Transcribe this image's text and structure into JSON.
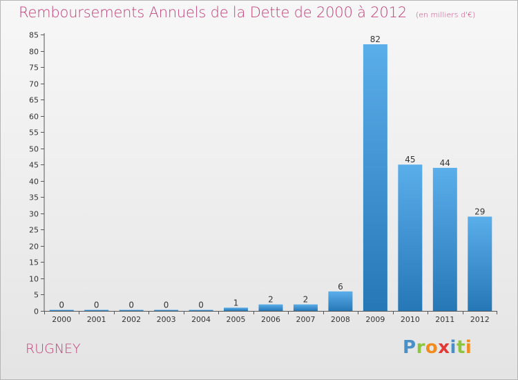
{
  "header": {
    "title": "Remboursements Annuels de la Dette de 2000 à 2012",
    "unit": "(en milliers d'€)"
  },
  "footer": {
    "location": "RUGNEY",
    "logo_letters": [
      "P",
      "r",
      "o",
      "x",
      "i",
      "t",
      "i"
    ],
    "logo_colors": [
      "#4a90c8",
      "#8cc63f",
      "#f28c1e",
      "#e53935",
      "#4a90c8",
      "#8cc63f",
      "#f28c1e"
    ]
  },
  "colors": {
    "bar_light": "#5aaeea",
    "bar_dark": "#2677b6",
    "title": "#c2407a"
  },
  "chart_data": {
    "type": "bar",
    "title": "Remboursements Annuels de la Dette de 2000 à 2012",
    "subtitle": "(en milliers d'€)",
    "xlabel": "",
    "ylabel": "",
    "categories": [
      "2000",
      "2001",
      "2002",
      "2003",
      "2004",
      "2005",
      "2006",
      "2007",
      "2008",
      "2009",
      "2010",
      "2011",
      "2012"
    ],
    "values": [
      0,
      0,
      0,
      0,
      0,
      1,
      2,
      2,
      6,
      82,
      45,
      44,
      29
    ],
    "ylim": [
      0,
      85
    ],
    "yticks": [
      0,
      5,
      10,
      15,
      20,
      25,
      30,
      35,
      40,
      45,
      50,
      55,
      60,
      65,
      70,
      75,
      80,
      85
    ],
    "grid": false,
    "legend": "none"
  }
}
